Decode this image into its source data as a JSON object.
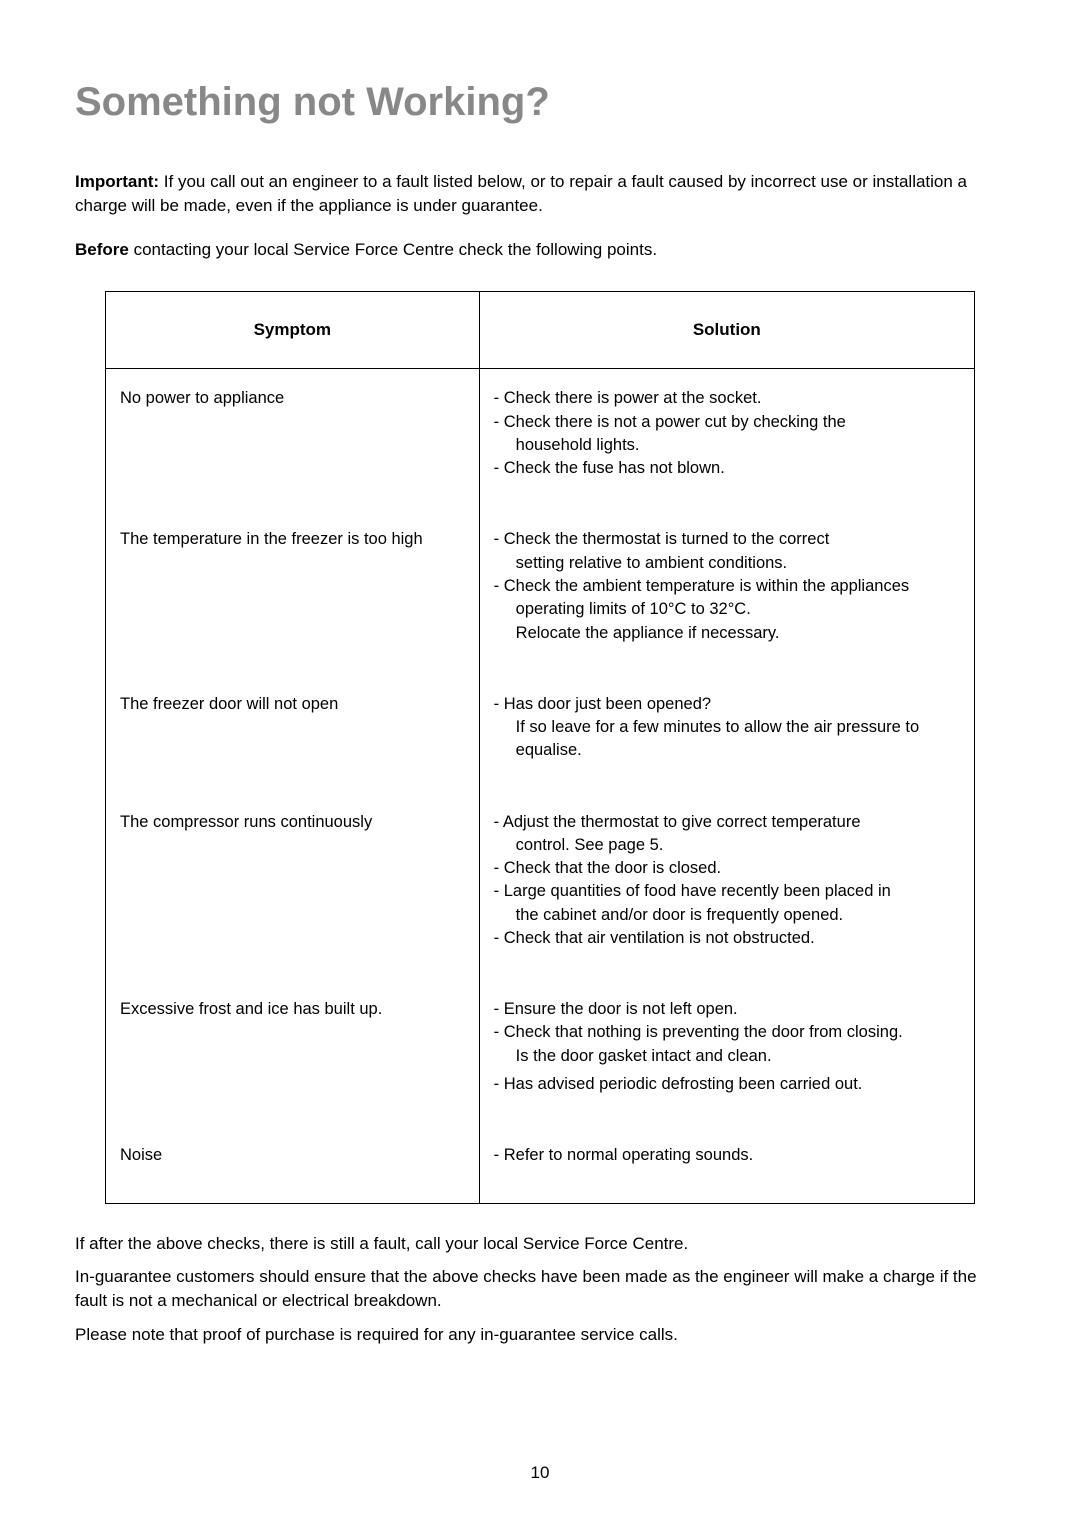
{
  "title": "Something not Working?",
  "intro": {
    "important_label": "Important:",
    "important_text": " If you call out an engineer to a fault listed below, or to repair a fault caused by incorrect use or installation a charge will be made, even if the appliance is under guarantee.",
    "before_label": "Before",
    "before_text": " contacting your local Service Force Centre check the following points."
  },
  "table": {
    "headers": {
      "symptom": "Symptom",
      "solution": "Solution"
    },
    "rows": [
      {
        "symptom": "No power to appliance",
        "solutions": [
          "- Check there is power at the socket.",
          "- Check there is not a power cut by checking the",
          "  household lights.",
          "- Check the fuse has not blown."
        ]
      },
      {
        "symptom": "The temperature in the freezer is too high",
        "solutions": [
          "- Check the thermostat is turned to the correct",
          "  setting relative to ambient conditions.",
          "- Check the ambient temperature is within the appliances",
          "  operating limits of 10°C to 32°C.",
          "  Relocate the appliance if necessary."
        ]
      },
      {
        "symptom": "The freezer door will not open",
        "solutions": [
          "- Has door just been opened?",
          "  If so leave for a few minutes to allow the air pressure to",
          "  equalise."
        ]
      },
      {
        "symptom": "The compressor runs continuously",
        "solutions": [
          "- Adjust the thermostat to give correct temperature",
          "  control. See page 5.",
          "- Check that the door is closed.",
          "- Large quantities of food have recently been placed in",
          "  the cabinet and/or door is frequently opened.",
          "- Check that air ventilation is not obstructed."
        ]
      },
      {
        "symptom": "Excessive frost and ice has built up.",
        "solutions": [
          "- Ensure the door is not left open.",
          "- Check that nothing is preventing the door from closing.",
          "  Is the door gasket intact and clean.",
          "- Has advised periodic defrosting been carried out."
        ]
      },
      {
        "symptom": "Noise",
        "solutions": [
          "- Refer to normal operating sounds."
        ]
      }
    ]
  },
  "after": {
    "p1": "If after the above checks, there is still a fault, call your local Service Force Centre.",
    "p2": "In-guarantee customers should ensure that the above checks have been made as the engineer will make a charge if the fault is not a mechanical or electrical breakdown.",
    "p3": "Please note that proof of purchase is required for any in-guarantee service calls."
  },
  "page_number": "10"
}
